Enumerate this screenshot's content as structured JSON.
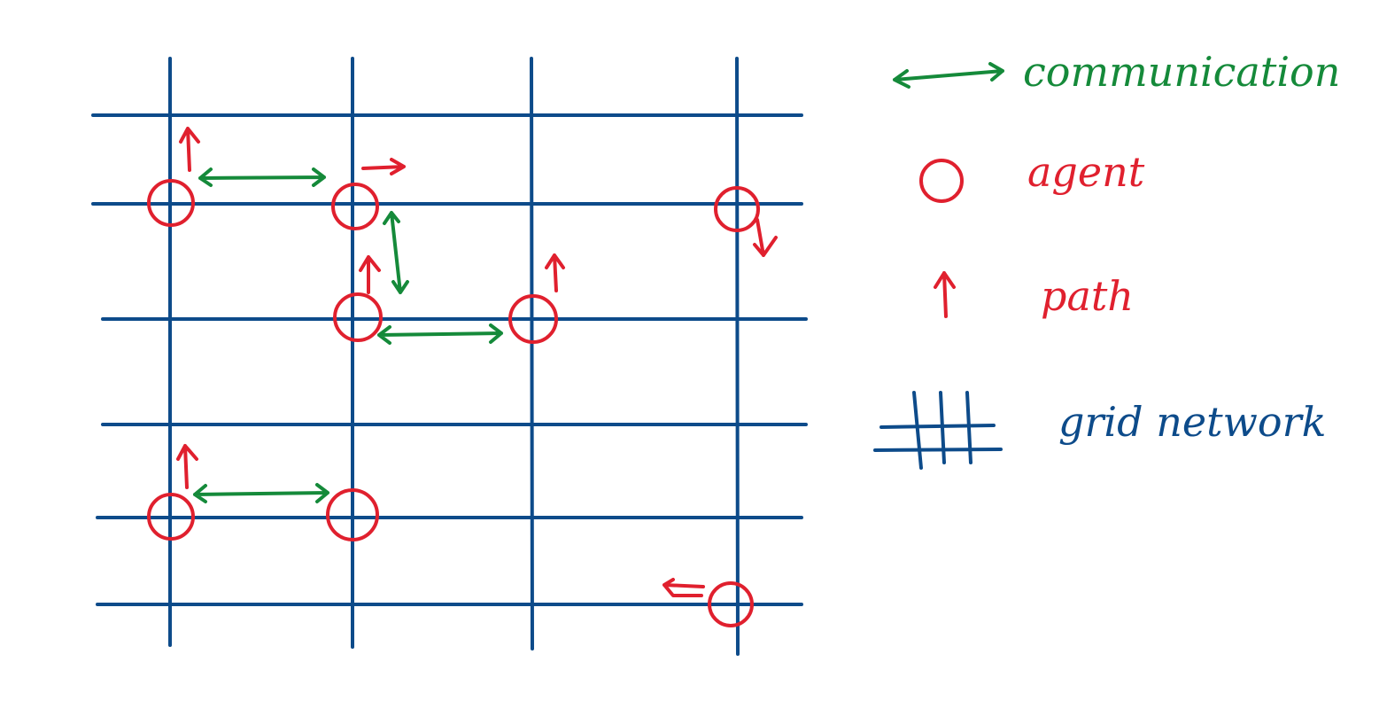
{
  "legend": {
    "communication": "communication",
    "agent": "agent",
    "path": "path",
    "grid_network": "grid network"
  },
  "colors": {
    "grid": "#0d4b8a",
    "agent": "#e0202e",
    "path": "#e0202e",
    "communication": "#158a3a"
  }
}
